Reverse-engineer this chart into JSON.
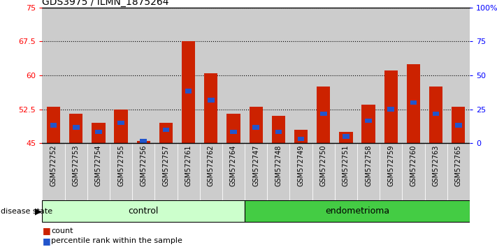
{
  "title": "GDS3975 / ILMN_1875264",
  "samples": [
    "GSM572752",
    "GSM572753",
    "GSM572754",
    "GSM572755",
    "GSM572756",
    "GSM572757",
    "GSM572761",
    "GSM572762",
    "GSM572764",
    "GSM572747",
    "GSM572748",
    "GSM572749",
    "GSM572750",
    "GSM572751",
    "GSM572758",
    "GSM572759",
    "GSM572760",
    "GSM572763",
    "GSM572765"
  ],
  "groups": [
    "control",
    "control",
    "control",
    "control",
    "control",
    "control",
    "control",
    "control",
    "control",
    "endometrioma",
    "endometrioma",
    "endometrioma",
    "endometrioma",
    "endometrioma",
    "endometrioma",
    "endometrioma",
    "endometrioma",
    "endometrioma",
    "endometrioma"
  ],
  "bar_values": [
    53.0,
    51.5,
    49.5,
    52.5,
    45.5,
    49.5,
    67.5,
    60.5,
    51.5,
    53.0,
    51.0,
    48.0,
    57.5,
    47.5,
    53.5,
    61.0,
    62.5,
    57.5,
    53.0
  ],
  "blue_values": [
    49.0,
    48.5,
    47.5,
    49.5,
    45.5,
    48.0,
    56.5,
    54.5,
    47.5,
    48.5,
    47.5,
    46.0,
    51.5,
    46.5,
    50.0,
    52.5,
    54.0,
    51.5,
    49.0
  ],
  "ylim_left": [
    45,
    75
  ],
  "ylim_right": [
    0,
    100
  ],
  "bar_color": "#cc2200",
  "blue_color": "#2255cc",
  "control_color": "#ccffcc",
  "endo_color": "#44cc44",
  "bar_width": 0.6,
  "baseline": 45,
  "yticks_left": [
    45,
    52.5,
    60,
    67.5,
    75
  ],
  "yticks_right": [
    0,
    25,
    50,
    75,
    100
  ],
  "cell_bg": "#cccccc"
}
